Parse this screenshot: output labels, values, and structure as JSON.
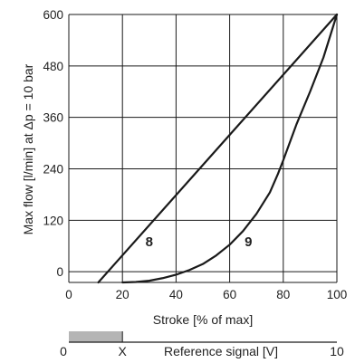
{
  "chart_data": {
    "type": "line",
    "xlabel": "Stroke [% of max]",
    "ylabel": "Max flow [l/min] at Δp = 10 bar",
    "xlim": [
      0,
      100
    ],
    "ylim": [
      -25,
      600
    ],
    "x_ticks": [
      0,
      20,
      40,
      60,
      80,
      100
    ],
    "y_ticks": [
      0,
      120,
      240,
      360,
      480,
      600
    ],
    "x_tick_labels": [
      "0",
      "20",
      "40",
      "60",
      "80",
      "100"
    ],
    "y_tick_labels": [
      "0",
      "120",
      "240",
      "360",
      "480",
      "600"
    ],
    "grid": true,
    "series": [
      {
        "name": "8",
        "x": [
          11,
          100
        ],
        "y": [
          -25,
          600
        ]
      },
      {
        "name": "9",
        "x": [
          20,
          25,
          30,
          35,
          40,
          45,
          50,
          55,
          60,
          65,
          70,
          75,
          78,
          80,
          85,
          90,
          95,
          100
        ],
        "y": [
          -25,
          -24,
          -21,
          -15,
          -7,
          4,
          18,
          38,
          63,
          95,
          135,
          185,
          228,
          260,
          345,
          420,
          500,
          600
        ]
      }
    ],
    "annotations": [
      {
        "text": "8",
        "x": 30,
        "y": 70
      },
      {
        "text": "9",
        "x": 67,
        "y": 70
      }
    ]
  },
  "reference_bar": {
    "min_label": "0",
    "marker_label": "X",
    "max_label": "10",
    "title": "Reference signal [V]",
    "shaded_from": 0,
    "shaded_to": 2,
    "range": [
      0,
      10
    ],
    "shade_color": "#b5b5b5"
  }
}
